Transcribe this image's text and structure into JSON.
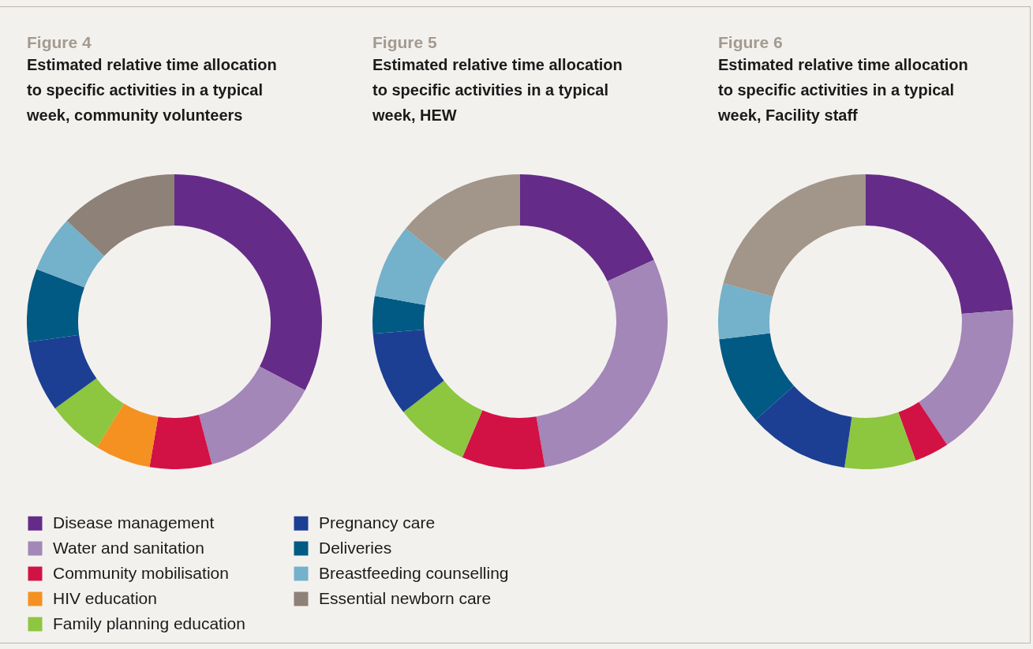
{
  "chart_data": [
    {
      "type": "donut",
      "title": "Figure 4",
      "subtitle": "Estimated relative time allocation to specific activities in a typical week, community volunteers",
      "categories": [
        "Disease management",
        "Water and sanitation",
        "Community mobilisation",
        "HIV education",
        "Family planning education",
        "Pregnancy care",
        "Deliveries",
        "Breastfeeding counselling",
        "Essential newborn care"
      ],
      "values": [
        32.7,
        13.2,
        6.8,
        6.1,
        6.2,
        7.8,
        8.0,
        6.2,
        13.0
      ],
      "colors": [
        "#652b89",
        "#a287b8",
        "#d21245",
        "#f59120",
        "#8dc63f",
        "#1c3f94",
        "#005a84",
        "#74b1ca",
        "#8e8178"
      ],
      "legend": "bottom"
    },
    {
      "type": "donut",
      "title": "Figure 5",
      "subtitle": "Estimated relative time allocation to specific activities in a typical week, HEW",
      "categories": [
        null,
        null,
        null,
        null,
        null,
        null,
        null,
        null
      ],
      "values": [
        18.1,
        29.2,
        9.1,
        8.1,
        9.2,
        4.1,
        8.1,
        14.1
      ],
      "colors": [
        "#652b89",
        "#a287b8",
        "#d21245",
        "#8dc63f",
        "#1c3f94",
        "#005a84",
        "#74b1ca",
        "#a29589"
      ]
    },
    {
      "type": "donut",
      "title": "Figure 6",
      "subtitle": "Estimated relative time allocation to specific activities in a typical week, Facility staff",
      "categories": [
        null,
        null,
        null,
        null,
        null,
        null,
        null,
        null
      ],
      "values": [
        23.7,
        17.0,
        3.8,
        7.8,
        11.1,
        9.7,
        6.1,
        20.8
      ],
      "colors": [
        "#652b89",
        "#a287b8",
        "#d21245",
        "#8dc63f",
        "#1c3f94",
        "#005a84",
        "#74b1ca",
        "#a29589"
      ]
    }
  ]
}
